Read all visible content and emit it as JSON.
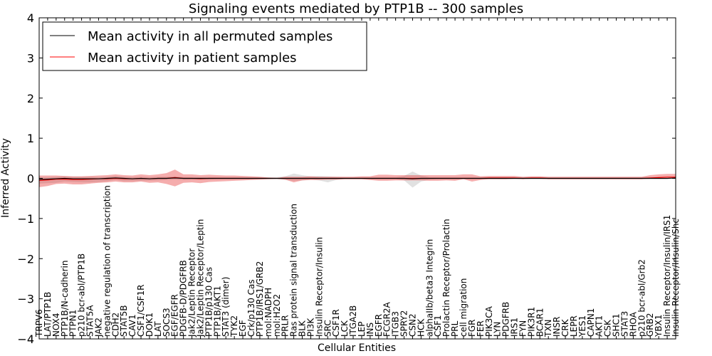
{
  "chart_data": {
    "type": "line",
    "title": "Signaling events mediated by PTP1B -- 300 samples",
    "xlabel": "Cellular Entities",
    "ylabel": "Inferred Activity",
    "ylim": [
      -4,
      4
    ],
    "yticks": [
      -4,
      -3,
      -2,
      -1,
      0,
      1,
      2,
      3,
      4
    ],
    "ytick_labels": [
      "−4",
      "−3",
      "−2",
      "−1",
      "0",
      "1",
      "2",
      "3",
      "4"
    ],
    "grid": false,
    "legend_position": "top-left",
    "legend": [
      {
        "label": "Mean activity in all permuted samples",
        "color": "#000000"
      },
      {
        "label": "Mean activity in patient samples",
        "color": "#ff0000"
      }
    ],
    "categories": [
      "TRPV6",
      "LAT/PTP1B",
      "NOX4",
      "PTP1B/N-cadherin",
      "PTPN1",
      "p210 bcr-abl/PTP1B",
      "STAT5A",
      "JAK2",
      "negative regulation of transcription",
      "CDH2",
      "STAT5B",
      "CAV1",
      "CSF1/CSF1R",
      "DOK1",
      "LAT",
      "SOCS3",
      "EGF/EGFR",
      "PDGFB-D/PDGFRB",
      "Jak2/Leptin Receptor",
      "Jak2/Leptin Receptor/Leptin",
      "PTP1B/p130 Cas",
      "PTP1B/AKT1",
      "STAT3 (dimer)",
      "TYK2",
      "EGF",
      "Crk/p130 Cas",
      "PTP1B/IRS1/GRB2",
      "mol:NADPH",
      "mol:H2O2",
      "PRLR",
      "Ras protein signal transduction",
      "BLK",
      "PI3K",
      "Insulin Receptor/Insulin",
      "SRC",
      "CSF1R",
      "LCK",
      "ITGA2B",
      "LEP",
      "INS",
      "EGFR",
      "FCGR2A",
      "ITGB3",
      "SPRY2",
      "CSN2",
      "HCK",
      "alphaIIb/beta3 Integrin",
      "CSF1",
      "Prolactin Receptor/Prolactin",
      "PRL",
      "cell migration",
      "FGR",
      "FER",
      "PIK3CA",
      "LYN",
      "PDGFRB",
      "IRS1",
      "FYN",
      "PIK3R1",
      "BCAR1",
      "TXN",
      "INSR",
      "CRK",
      "LEPR",
      "YES1",
      "CAPN1",
      "AKT1",
      "CSK",
      "SHC1",
      "STAT3",
      "RHOA",
      "p210 bcr-abl/Grb2",
      "GRB2",
      "YBX1",
      "Insulin Receptor/Insulin/IRS1",
      "Insulin Receptor/Insulin/Shc"
    ],
    "series": [
      {
        "name": "Mean activity in all permuted samples",
        "color": "#000000",
        "values": [
          -0.03,
          -0.02,
          -0.01,
          0.0,
          -0.01,
          -0.01,
          -0.01,
          -0.01,
          0.0,
          0.01,
          0.0,
          -0.01,
          0.0,
          -0.01,
          0.0,
          0.0,
          0.01,
          0.0,
          0.0,
          0.0,
          0.0,
          0.0,
          0.0,
          0.0,
          0.0,
          0.0,
          0.0,
          0.0,
          0.0,
          0.0,
          0.0,
          0.0,
          0.0,
          0.0,
          0.0,
          0.0,
          0.0,
          0.0,
          0.0,
          0.0,
          0.0,
          0.0,
          0.0,
          0.0,
          -0.01,
          0.0,
          0.0,
          0.0,
          0.0,
          0.0,
          0.0,
          0.0,
          0.0,
          0.0,
          0.0,
          0.0,
          0.0,
          0.0,
          0.0,
          0.0,
          0.0,
          0.0,
          0.0,
          0.0,
          0.0,
          0.0,
          0.0,
          0.0,
          0.0,
          0.0,
          0.0,
          0.0,
          0.0,
          0.0,
          0.0,
          0.01
        ],
        "band_low": [
          -0.1,
          -0.1,
          -0.1,
          -0.08,
          -0.08,
          -0.09,
          -0.09,
          -0.08,
          -0.07,
          -0.05,
          -0.07,
          -0.06,
          -0.06,
          -0.05,
          -0.05,
          -0.04,
          -0.04,
          -0.04,
          -0.03,
          -0.03,
          -0.03,
          -0.02,
          -0.02,
          -0.02,
          -0.02,
          -0.02,
          -0.02,
          -0.02,
          -0.02,
          -0.04,
          -0.06,
          -0.05,
          -0.03,
          -0.05,
          -0.1,
          -0.04,
          -0.02,
          -0.02,
          -0.02,
          -0.02,
          -0.02,
          -0.02,
          -0.02,
          -0.05,
          -0.22,
          -0.08,
          -0.03,
          -0.02,
          -0.02,
          -0.02,
          -0.02,
          -0.02,
          -0.02,
          -0.02,
          -0.02,
          -0.02,
          -0.02,
          -0.02,
          -0.02,
          -0.02,
          -0.02,
          -0.02,
          -0.02,
          -0.02,
          -0.02,
          -0.02,
          -0.02,
          -0.02,
          -0.02,
          -0.02,
          -0.02,
          -0.02,
          -0.02,
          -0.02,
          -0.02,
          -0.02
        ],
        "band_high": [
          0.06,
          0.05,
          0.05,
          0.05,
          0.05,
          0.05,
          0.05,
          0.04,
          0.04,
          0.05,
          0.04,
          0.04,
          0.04,
          0.04,
          0.04,
          0.04,
          0.04,
          0.03,
          0.03,
          0.03,
          0.03,
          0.03,
          0.03,
          0.03,
          0.03,
          0.03,
          0.03,
          0.03,
          0.03,
          0.05,
          0.12,
          0.08,
          0.05,
          0.06,
          0.05,
          0.04,
          0.03,
          0.03,
          0.03,
          0.03,
          0.03,
          0.03,
          0.03,
          0.06,
          0.18,
          0.07,
          0.03,
          0.03,
          0.03,
          0.03,
          0.03,
          0.03,
          0.03,
          0.03,
          0.03,
          0.03,
          0.03,
          0.03,
          0.03,
          0.03,
          0.03,
          0.03,
          0.03,
          0.03,
          0.03,
          0.03,
          0.03,
          0.03,
          0.03,
          0.03,
          0.03,
          0.03,
          0.03,
          0.03,
          0.03,
          0.03
        ]
      },
      {
        "name": "Mean activity in patient samples",
        "color": "#ff0000",
        "values": [
          -0.05,
          -0.04,
          -0.02,
          -0.02,
          -0.03,
          -0.03,
          -0.02,
          -0.01,
          -0.01,
          0.0,
          -0.01,
          -0.01,
          0.0,
          -0.01,
          0.0,
          0.0,
          0.02,
          0.0,
          0.0,
          -0.01,
          0.0,
          0.0,
          0.0,
          0.0,
          0.0,
          0.0,
          0.0,
          0.0,
          0.0,
          0.0,
          0.0,
          0.0,
          0.0,
          0.0,
          0.0,
          0.0,
          0.0,
          0.0,
          0.0,
          0.0,
          0.0,
          0.0,
          0.0,
          0.0,
          0.0,
          0.0,
          0.0,
          0.0,
          0.0,
          0.0,
          0.0,
          0.0,
          0.0,
          0.01,
          0.01,
          0.01,
          0.01,
          0.0,
          0.01,
          0.01,
          0.0,
          0.0,
          0.0,
          0.0,
          0.0,
          0.0,
          0.0,
          0.0,
          0.0,
          0.0,
          0.0,
          0.0,
          0.01,
          0.02,
          0.03,
          0.03
        ],
        "band_low": [
          -0.17,
          -0.15,
          -0.12,
          -0.11,
          -0.12,
          -0.12,
          -0.11,
          -0.1,
          -0.09,
          -0.08,
          -0.09,
          -0.09,
          -0.08,
          -0.1,
          -0.1,
          -0.14,
          -0.22,
          -0.11,
          -0.1,
          -0.11,
          -0.09,
          -0.08,
          -0.07,
          -0.06,
          -0.05,
          -0.04,
          -0.03,
          -0.02,
          -0.01,
          -0.03,
          -0.1,
          -0.05,
          -0.04,
          -0.04,
          -0.03,
          -0.03,
          -0.02,
          -0.02,
          -0.02,
          -0.04,
          -0.06,
          -0.06,
          -0.05,
          -0.05,
          -0.05,
          -0.05,
          -0.06,
          -0.06,
          -0.05,
          -0.06,
          -0.02,
          -0.08,
          -0.04,
          -0.03,
          -0.03,
          -0.03,
          -0.02,
          -0.02,
          -0.02,
          -0.02,
          -0.02,
          -0.02,
          -0.02,
          -0.02,
          -0.02,
          -0.02,
          -0.02,
          -0.02,
          -0.02,
          -0.02,
          -0.02,
          -0.02,
          -0.02,
          -0.01,
          0.0,
          0.0
        ],
        "band_high": [
          0.12,
          0.11,
          0.09,
          0.08,
          0.08,
          0.08,
          0.08,
          0.08,
          0.09,
          0.1,
          0.09,
          0.08,
          0.1,
          0.09,
          0.1,
          0.13,
          0.2,
          0.1,
          0.1,
          0.09,
          0.09,
          0.08,
          0.07,
          0.07,
          0.06,
          0.05,
          0.04,
          0.02,
          0.01,
          0.04,
          0.04,
          0.04,
          0.05,
          0.04,
          0.04,
          0.04,
          0.04,
          0.04,
          0.05,
          0.05,
          0.09,
          0.09,
          0.08,
          0.08,
          0.08,
          0.08,
          0.08,
          0.08,
          0.08,
          0.08,
          0.1,
          0.1,
          0.05,
          0.05,
          0.05,
          0.05,
          0.05,
          0.04,
          0.04,
          0.04,
          0.04,
          0.04,
          0.04,
          0.04,
          0.04,
          0.04,
          0.04,
          0.04,
          0.04,
          0.04,
          0.04,
          0.04,
          0.07,
          0.08,
          0.08,
          0.08
        ]
      }
    ]
  }
}
